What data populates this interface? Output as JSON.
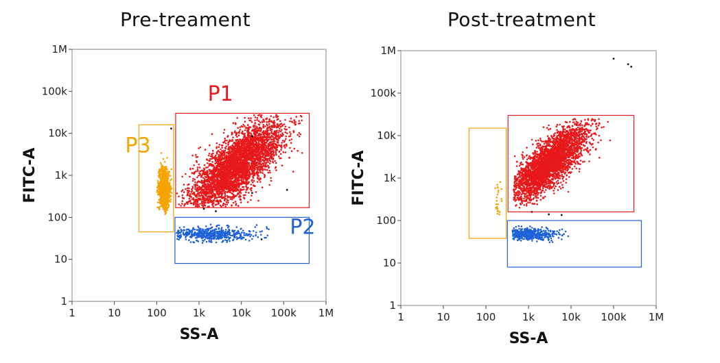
{
  "figure": {
    "accent_colors": {
      "P1": "#e8191b",
      "P2": "#1f62d8",
      "P3": "#f5a300",
      "outside": "#111111"
    }
  },
  "chart_data": [
    {
      "type": "scatter",
      "title": "Pre-treament",
      "xlabel": "SS-A",
      "ylabel": "FITC-A",
      "xscale": "log",
      "yscale": "log",
      "xlim": [
        1,
        1000000
      ],
      "ylim": [
        1,
        1000000
      ],
      "xticks": [
        "1",
        "10",
        "100",
        "1k",
        "10k",
        "100k",
        "1M"
      ],
      "yticks": [
        "1",
        "10",
        "100",
        "1k",
        "10k",
        "100k",
        "1M"
      ],
      "grid": false,
      "gates": [
        {
          "name": "P1",
          "label": "P1",
          "color": "#e8191b",
          "x_range": [
            280,
            400000
          ],
          "y_range": [
            170,
            30000
          ],
          "label_at": [
            1600,
            60000
          ]
        },
        {
          "name": "P2",
          "label": "P2",
          "color": "#1f62d8",
          "x_range": [
            270,
            400000
          ],
          "y_range": [
            8,
            100
          ],
          "label_at": [
            140000,
            40
          ]
        },
        {
          "name": "P3",
          "label": "P3",
          "color": "#f5a300",
          "x_range": [
            38,
            250
          ],
          "y_range": [
            45,
            16000
          ],
          "label_at": [
            18,
            3500
          ]
        }
      ],
      "populations": [
        {
          "gate": "P1",
          "color": "#e8191b",
          "count": 3800,
          "x_center": 8000,
          "x_spread_log": 0.55,
          "x_range": [
            300,
            300000
          ],
          "y_center": 1800,
          "y_spread_log": 0.35,
          "y_range": [
            180,
            28000
          ],
          "slope": 0.7
        },
        {
          "gate": "P2",
          "color": "#1f62d8",
          "count": 500,
          "x_center": 1800,
          "x_spread_log": 0.55,
          "x_range": [
            290,
            200000
          ],
          "y_center": 40,
          "y_spread_log": 0.08,
          "y_range": [
            24,
            70
          ],
          "slope": 0
        },
        {
          "gate": "P3",
          "color": "#f5a300",
          "count": 1300,
          "x_center": 150,
          "x_spread_log": 0.06,
          "x_range": [
            90,
            230
          ],
          "y_center": 480,
          "y_spread_log": 0.22,
          "y_range": [
            110,
            7000
          ],
          "slope": 0
        }
      ],
      "outliers": [
        [
          18000,
          380
        ],
        [
          120000,
          450
        ],
        [
          220,
          13000
        ],
        [
          1300,
          160
        ],
        [
          2500,
          140
        ],
        [
          30000,
          30
        ],
        [
          18000,
          8500
        ]
      ]
    },
    {
      "type": "scatter",
      "title": "Post-treatment",
      "xlabel": "SS-A",
      "ylabel": "FITC-A",
      "xscale": "log",
      "yscale": "log",
      "xlim": [
        1,
        1000000
      ],
      "ylim": [
        1,
        1000000
      ],
      "xticks": [
        "1",
        "10",
        "100",
        "1k",
        "10k",
        "100k",
        "1M"
      ],
      "yticks": [
        "1",
        "10",
        "100",
        "1k",
        "10k",
        "100k",
        "1M"
      ],
      "grid": false,
      "gates": [
        {
          "name": "P1",
          "color": "#e8191b",
          "x_range": [
            330,
            300000
          ],
          "y_range": [
            160,
            30000
          ]
        },
        {
          "name": "P2",
          "color": "#1f62d8",
          "x_range": [
            320,
            450000
          ],
          "y_range": [
            8,
            100
          ]
        },
        {
          "name": "P3",
          "color": "#f5a300",
          "x_range": [
            40,
            300
          ],
          "y_range": [
            38,
            15000
          ]
        }
      ],
      "populations": [
        {
          "gate": "P1",
          "color": "#e8191b",
          "count": 3300,
          "x_center": 3000,
          "x_spread_log": 0.45,
          "x_range": [
            450,
            110000
          ],
          "y_center": 2200,
          "y_spread_log": 0.28,
          "y_range": [
            200,
            25000
          ],
          "slope": 0.75
        },
        {
          "gate": "P2",
          "color": "#1f62d8",
          "count": 450,
          "x_center": 900,
          "x_spread_log": 0.35,
          "x_range": [
            420,
            120000
          ],
          "y_center": 48,
          "y_spread_log": 0.07,
          "y_range": [
            28,
            78
          ],
          "slope": 0
        },
        {
          "gate": "P3",
          "color": "#f5a300",
          "count": 24,
          "x_center": 190,
          "x_spread_log": 0.04,
          "x_range": [
            120,
            240
          ],
          "y_center": 330,
          "y_spread_log": 0.25,
          "y_range": [
            120,
            1300
          ],
          "slope": 0
        }
      ],
      "outliers": [
        [
          100000,
          650000
        ],
        [
          220000,
          480000
        ],
        [
          260000,
          420000
        ],
        [
          3000,
          140
        ],
        [
          6000,
          135
        ],
        [
          1200,
          160
        ]
      ]
    }
  ]
}
